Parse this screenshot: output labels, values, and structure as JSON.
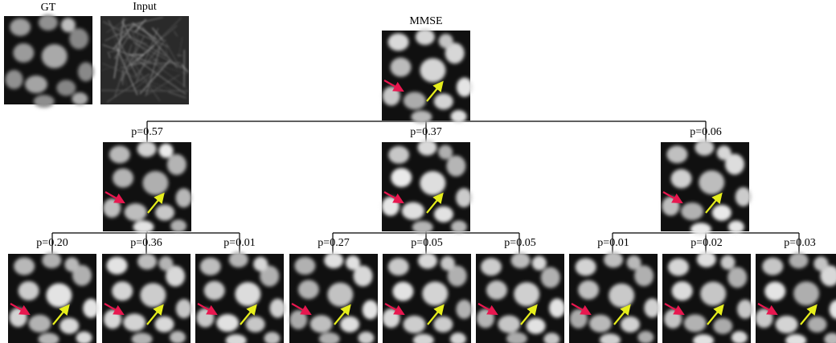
{
  "panels": {
    "gt": {
      "label": "GT"
    },
    "input": {
      "label": "Input"
    }
  },
  "root": {
    "label": "MMSE"
  },
  "level1": [
    {
      "label": "p=0.57",
      "children": [
        {
          "label": "p=0.20"
        },
        {
          "label": "p=0.36"
        },
        {
          "label": "p=0.01"
        }
      ]
    },
    {
      "label": "p=0.37",
      "children": [
        {
          "label": "p=0.27"
        },
        {
          "label": "p=0.05"
        },
        {
          "label": "p=0.05"
        }
      ]
    },
    {
      "label": "p=0.06",
      "children": [
        {
          "label": "p=0.01"
        },
        {
          "label": "p=0.02"
        },
        {
          "label": "p=0.03"
        }
      ]
    }
  ]
}
